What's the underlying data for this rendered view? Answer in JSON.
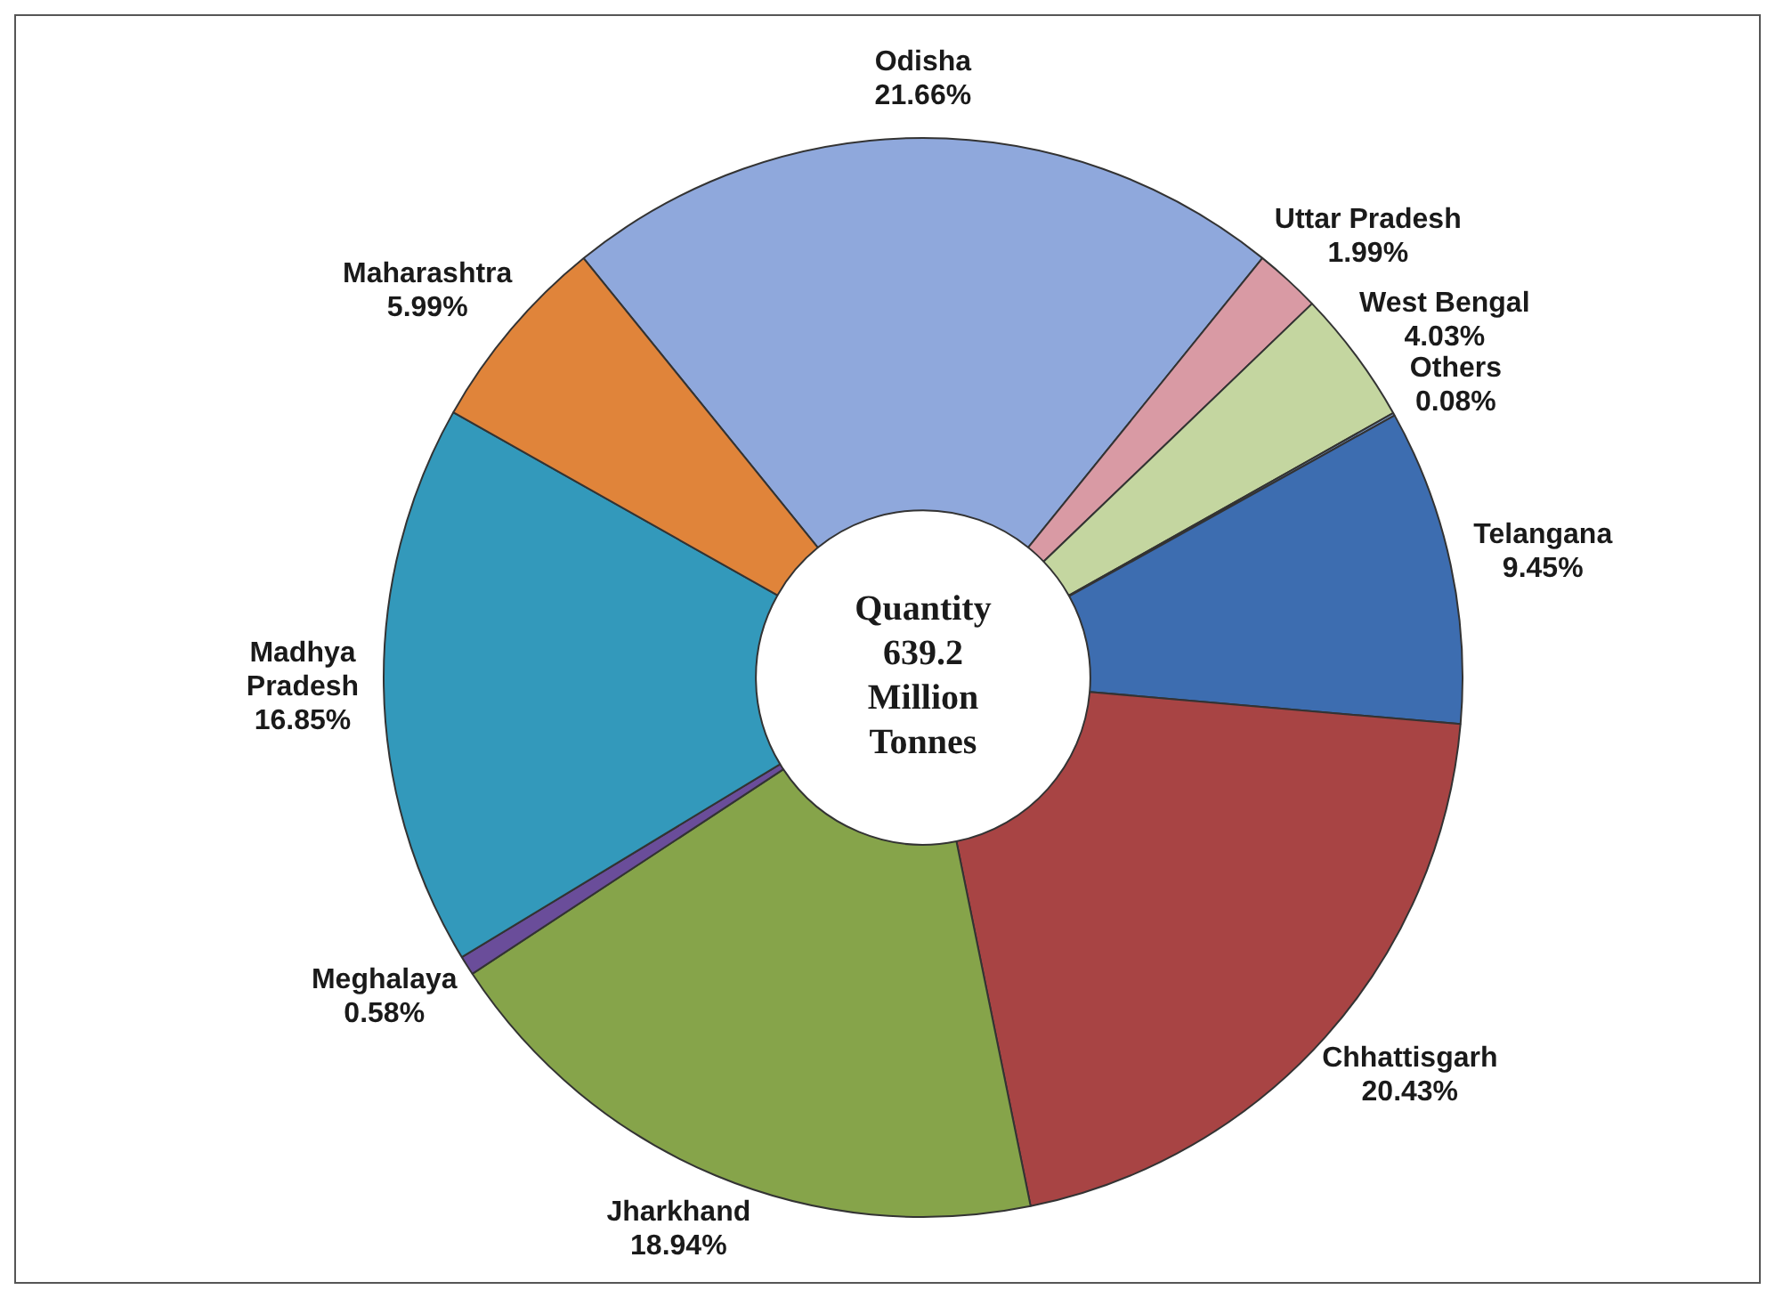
{
  "chart_data": {
    "type": "donut",
    "categories": [
      "Odisha",
      "Uttar Pradesh",
      "West Bengal",
      "Others",
      "Telangana",
      "Chhattisgarh",
      "Jharkhand",
      "Meghalaya",
      "Madhya Pradesh",
      "Maharashtra"
    ],
    "values": [
      21.66,
      1.99,
      4.03,
      0.08,
      9.45,
      20.43,
      18.94,
      0.58,
      16.85,
      5.99
    ],
    "colors": [
      "#8fa8dc",
      "#d99aa4",
      "#c4d6a0",
      "#7fa0d0",
      "#3d6db0",
      "#a84444",
      "#86a44a",
      "#6a4d9a",
      "#3399bb",
      "#e0843a"
    ],
    "value_labels": [
      "21.66%",
      "1.99%",
      "4.03%",
      "0.08%",
      "9.45%",
      "20.43%",
      "18.94%",
      "0.58%",
      "16.85%",
      "5.99%"
    ],
    "annotations": [
      "Quantity 639.2 Million Tonnes"
    ],
    "legend": false
  }
}
